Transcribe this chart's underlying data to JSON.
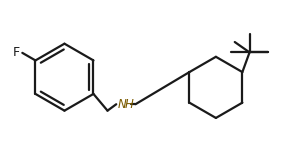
{
  "background_color": "#ffffff",
  "line_color": "#1a1a1a",
  "label_color_NH": "#7B5B00",
  "label_color_F": "#1a1a1a",
  "line_width": 1.6,
  "figure_width": 2.92,
  "figure_height": 1.66,
  "dpi": 100,
  "xlim": [
    0,
    10
  ],
  "ylim": [
    0,
    5.7
  ]
}
